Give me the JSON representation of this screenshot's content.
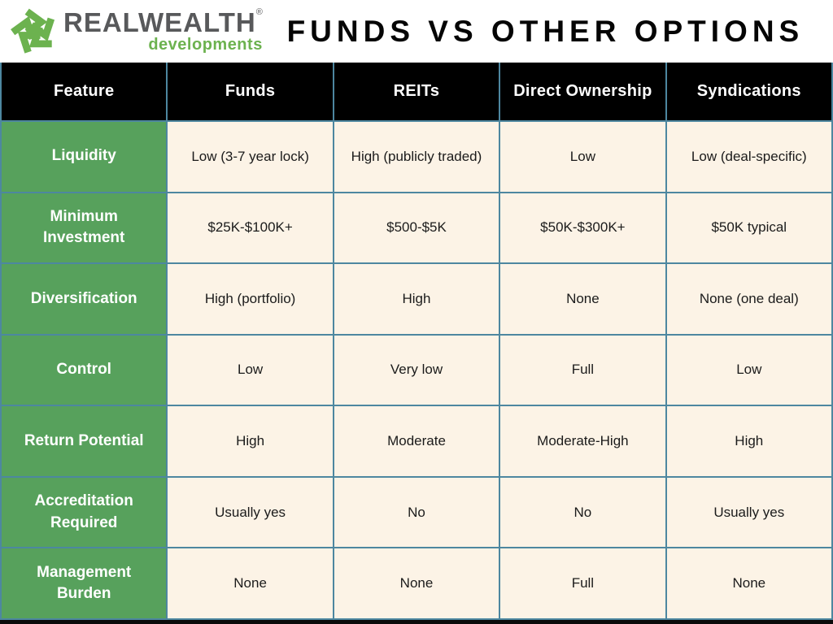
{
  "logo": {
    "brand": "REALWEALTH",
    "registered": "®",
    "sub": "developments"
  },
  "icons": {
    "logo_mark": "pinwheel-arrows"
  },
  "title": "FUNDS VS OTHER OPTIONS",
  "table": {
    "columns": [
      "Feature",
      "Funds",
      "REITs",
      "Direct Ownership",
      "Syndications"
    ],
    "rows": [
      {
        "feature": "Liquidity",
        "values": [
          "Low (3-7 year lock)",
          "High (publicly traded)",
          "Low",
          "Low (deal-specific)"
        ]
      },
      {
        "feature": "Minimum Investment",
        "values": [
          "$25K-$100K+",
          "$500-$5K",
          "$50K-$300K+",
          "$50K typical"
        ]
      },
      {
        "feature": "Diversification",
        "values": [
          "High (portfolio)",
          "High",
          "None",
          "None (one deal)"
        ]
      },
      {
        "feature": "Control",
        "values": [
          "Low",
          "Very low",
          "Full",
          "Low"
        ]
      },
      {
        "feature": "Return Potential",
        "values": [
          "High",
          "Moderate",
          "Moderate-High",
          "High"
        ]
      },
      {
        "feature": "Accreditation Required",
        "values": [
          "Usually yes",
          "No",
          "No",
          "Usually yes"
        ]
      },
      {
        "feature": "Management Burden",
        "values": [
          "None",
          "None",
          "Full",
          "None"
        ]
      }
    ]
  },
  "colors": {
    "header_bg": "#000000",
    "feature_green": "#57a15c",
    "value_cream": "#fcf3e6",
    "grid_teal": "#4d87a0",
    "logo_green": "#6cb24f",
    "logo_gray": "#58595b",
    "title_black": "#050505"
  }
}
